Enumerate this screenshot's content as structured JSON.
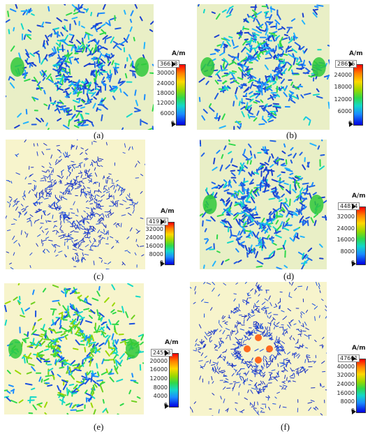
{
  "panels": [
    {
      "id": "a",
      "caption": "(a)",
      "unit": "A/m",
      "max_label": "36618",
      "ticks": [
        "30000",
        "24000",
        "18000",
        "12000",
        "6000",
        "0"
      ],
      "pattern": "dense",
      "bg": "#e9efc6"
    },
    {
      "id": "b",
      "caption": "(b)",
      "unit": "A/m",
      "max_label": "28655",
      "ticks": [
        "24000",
        "18000",
        "12000",
        "6000",
        "0"
      ],
      "pattern": "dense",
      "bg": "#e9efc6"
    },
    {
      "id": "c",
      "caption": "(c)",
      "unit": "A/m",
      "max_label": "41916",
      "ticks": [
        "32000",
        "24000",
        "16000",
        "8000",
        "0"
      ],
      "pattern": "sparse",
      "bg": "#f7f4cc"
    },
    {
      "id": "d",
      "caption": "(d)",
      "unit": "A/m",
      "max_label": "44874",
      "ticks": [
        "32000",
        "24000",
        "16000",
        "8000",
        "0"
      ],
      "pattern": "dense",
      "bg": "#e9efc6"
    },
    {
      "id": "e",
      "caption": "(e)",
      "unit": "A/m",
      "max_label": "24593",
      "ticks": [
        "20000",
        "16000",
        "12000",
        "8000",
        "4000",
        "0"
      ],
      "pattern": "bright",
      "bg": "#f7f4cc"
    },
    {
      "id": "f",
      "caption": "(f)",
      "unit": "A/m",
      "max_label": "47661",
      "ticks": [
        "40000",
        "32000",
        "24000",
        "16000",
        "8000",
        "0"
      ],
      "pattern": "sparse",
      "bg": "#f7f4cc"
    }
  ]
}
